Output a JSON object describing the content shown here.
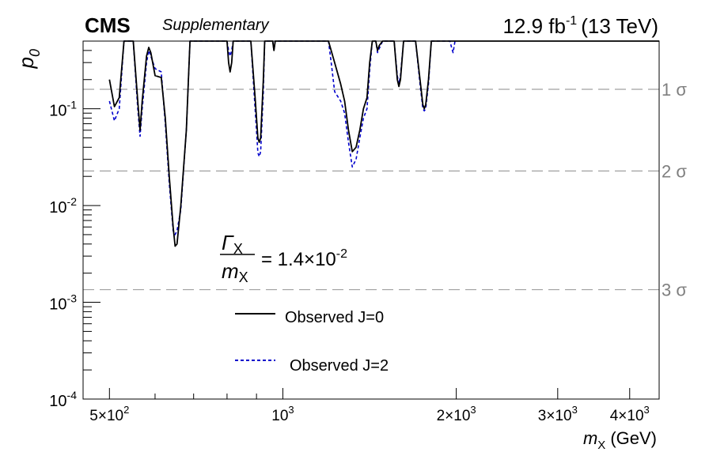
{
  "header": {
    "experiment": "CMS",
    "tag": "Supplementary",
    "lumi_value": "12.9 fb",
    "lumi_exp": "-1",
    "energy": "(13 TeV)"
  },
  "annotation": {
    "numerator": "Γ",
    "numerator_sub": "X",
    "denominator": "m",
    "denominator_sub": "X",
    "value": "= 1.4×10",
    "value_exp": "-2"
  },
  "chart_data": {
    "type": "line",
    "xlabel": "m",
    "xlabel_sub": "X",
    "xlabel_unit": "(GeV)",
    "ylabel": "p",
    "ylabel_sub": "0",
    "xscale": "log",
    "yscale": "log",
    "xlim": [
      450,
      4500
    ],
    "ylim": [
      0.0001,
      0.5
    ],
    "x_ticks": [
      {
        "value": 500,
        "mant": "5×10",
        "exp": "2"
      },
      {
        "value": 1000,
        "mant": "10",
        "exp": "3"
      },
      {
        "value": 2000,
        "mant": "2×10",
        "exp": "3"
      },
      {
        "value": 3000,
        "mant": "3×10",
        "exp": "3"
      },
      {
        "value": 4000,
        "mant": "4×10",
        "exp": "3"
      }
    ],
    "y_ticks": [
      {
        "value": 0.1,
        "mant": "10",
        "exp": "-1"
      },
      {
        "value": 0.01,
        "mant": "10",
        "exp": "-2"
      },
      {
        "value": 0.001,
        "mant": "10",
        "exp": "-3"
      },
      {
        "value": 0.0001,
        "mant": "10",
        "exp": "-4"
      }
    ],
    "sigma_lines": [
      {
        "label": "1 σ",
        "p": 0.1587
      },
      {
        "label": "2 σ",
        "p": 0.02275
      },
      {
        "label": "3 σ",
        "p": 0.00135
      }
    ],
    "legend": {
      "placement": "center-left"
    },
    "series": [
      {
        "name": "Observed J=0",
        "style": "solid",
        "color": "#000000",
        "points": [
          [
            500,
            0.2
          ],
          [
            510,
            0.105
          ],
          [
            520,
            0.13
          ],
          [
            530,
            0.5
          ],
          [
            550,
            0.5
          ],
          [
            560,
            0.12
          ],
          [
            565,
            0.06
          ],
          [
            570,
            0.12
          ],
          [
            580,
            0.35
          ],
          [
            585,
            0.43
          ],
          [
            590,
            0.38
          ],
          [
            600,
            0.22
          ],
          [
            615,
            0.21
          ],
          [
            625,
            0.08
          ],
          [
            635,
            0.02
          ],
          [
            645,
            0.006
          ],
          [
            650,
            0.0038
          ],
          [
            655,
            0.004
          ],
          [
            665,
            0.01
          ],
          [
            680,
            0.06
          ],
          [
            690,
            0.5
          ],
          [
            800,
            0.5
          ],
          [
            805,
            0.3
          ],
          [
            810,
            0.24
          ],
          [
            815,
            0.3
          ],
          [
            820,
            0.5
          ],
          [
            880,
            0.5
          ],
          [
            895,
            0.13
          ],
          [
            905,
            0.05
          ],
          [
            910,
            0.045
          ],
          [
            915,
            0.05
          ],
          [
            925,
            0.2
          ],
          [
            930,
            0.5
          ],
          [
            960,
            0.5
          ],
          [
            965,
            0.4
          ],
          [
            970,
            0.5
          ],
          [
            1200,
            0.5
          ],
          [
            1230,
            0.3
          ],
          [
            1260,
            0.18
          ],
          [
            1280,
            0.12
          ],
          [
            1300,
            0.06
          ],
          [
            1320,
            0.036
          ],
          [
            1340,
            0.04
          ],
          [
            1360,
            0.06
          ],
          [
            1380,
            0.1
          ],
          [
            1400,
            0.13
          ],
          [
            1415,
            0.3
          ],
          [
            1430,
            0.5
          ],
          [
            1450,
            0.5
          ],
          [
            1460,
            0.4
          ],
          [
            1470,
            0.45
          ],
          [
            1490,
            0.5
          ],
          [
            1560,
            0.5
          ],
          [
            1580,
            0.2
          ],
          [
            1590,
            0.17
          ],
          [
            1600,
            0.2
          ],
          [
            1620,
            0.5
          ],
          [
            1700,
            0.5
          ],
          [
            1730,
            0.2
          ],
          [
            1750,
            0.11
          ],
          [
            1760,
            0.1
          ],
          [
            1770,
            0.11
          ],
          [
            1790,
            0.2
          ],
          [
            1810,
            0.5
          ],
          [
            4500,
            0.5
          ]
        ]
      },
      {
        "name": "Observed J=2",
        "style": "dashed",
        "color": "#0000cc",
        "points": [
          [
            500,
            0.12
          ],
          [
            510,
            0.075
          ],
          [
            520,
            0.1
          ],
          [
            530,
            0.5
          ],
          [
            550,
            0.5
          ],
          [
            560,
            0.1
          ],
          [
            565,
            0.052
          ],
          [
            570,
            0.1
          ],
          [
            580,
            0.3
          ],
          [
            585,
            0.4
          ],
          [
            590,
            0.35
          ],
          [
            600,
            0.26
          ],
          [
            615,
            0.24
          ],
          [
            625,
            0.07
          ],
          [
            635,
            0.017
          ],
          [
            645,
            0.0055
          ],
          [
            650,
            0.005
          ],
          [
            655,
            0.0055
          ],
          [
            665,
            0.009
          ],
          [
            680,
            0.06
          ],
          [
            690,
            0.5
          ],
          [
            800,
            0.5
          ],
          [
            805,
            0.4
          ],
          [
            810,
            0.35
          ],
          [
            815,
            0.4
          ],
          [
            820,
            0.5
          ],
          [
            880,
            0.5
          ],
          [
            895,
            0.1
          ],
          [
            905,
            0.035
          ],
          [
            910,
            0.032
          ],
          [
            915,
            0.036
          ],
          [
            925,
            0.15
          ],
          [
            930,
            0.5
          ],
          [
            960,
            0.5
          ],
          [
            965,
            0.4
          ],
          [
            970,
            0.5
          ],
          [
            1200,
            0.5
          ],
          [
            1215,
            0.28
          ],
          [
            1230,
            0.15
          ],
          [
            1260,
            0.12
          ],
          [
            1280,
            0.09
          ],
          [
            1300,
            0.045
          ],
          [
            1320,
            0.025
          ],
          [
            1340,
            0.03
          ],
          [
            1360,
            0.05
          ],
          [
            1380,
            0.08
          ],
          [
            1400,
            0.1
          ],
          [
            1415,
            0.25
          ],
          [
            1430,
            0.5
          ],
          [
            1450,
            0.5
          ],
          [
            1460,
            0.38
          ],
          [
            1470,
            0.42
          ],
          [
            1490,
            0.5
          ],
          [
            1560,
            0.5
          ],
          [
            1580,
            0.22
          ],
          [
            1590,
            0.18
          ],
          [
            1600,
            0.22
          ],
          [
            1620,
            0.5
          ],
          [
            1700,
            0.5
          ],
          [
            1730,
            0.18
          ],
          [
            1750,
            0.1
          ],
          [
            1760,
            0.095
          ],
          [
            1770,
            0.1
          ],
          [
            1790,
            0.18
          ],
          [
            1810,
            0.5
          ],
          [
            1950,
            0.5
          ],
          [
            1965,
            0.42
          ],
          [
            1975,
            0.38
          ],
          [
            1990,
            0.5
          ],
          [
            2000,
            0.5
          ]
        ]
      }
    ]
  }
}
